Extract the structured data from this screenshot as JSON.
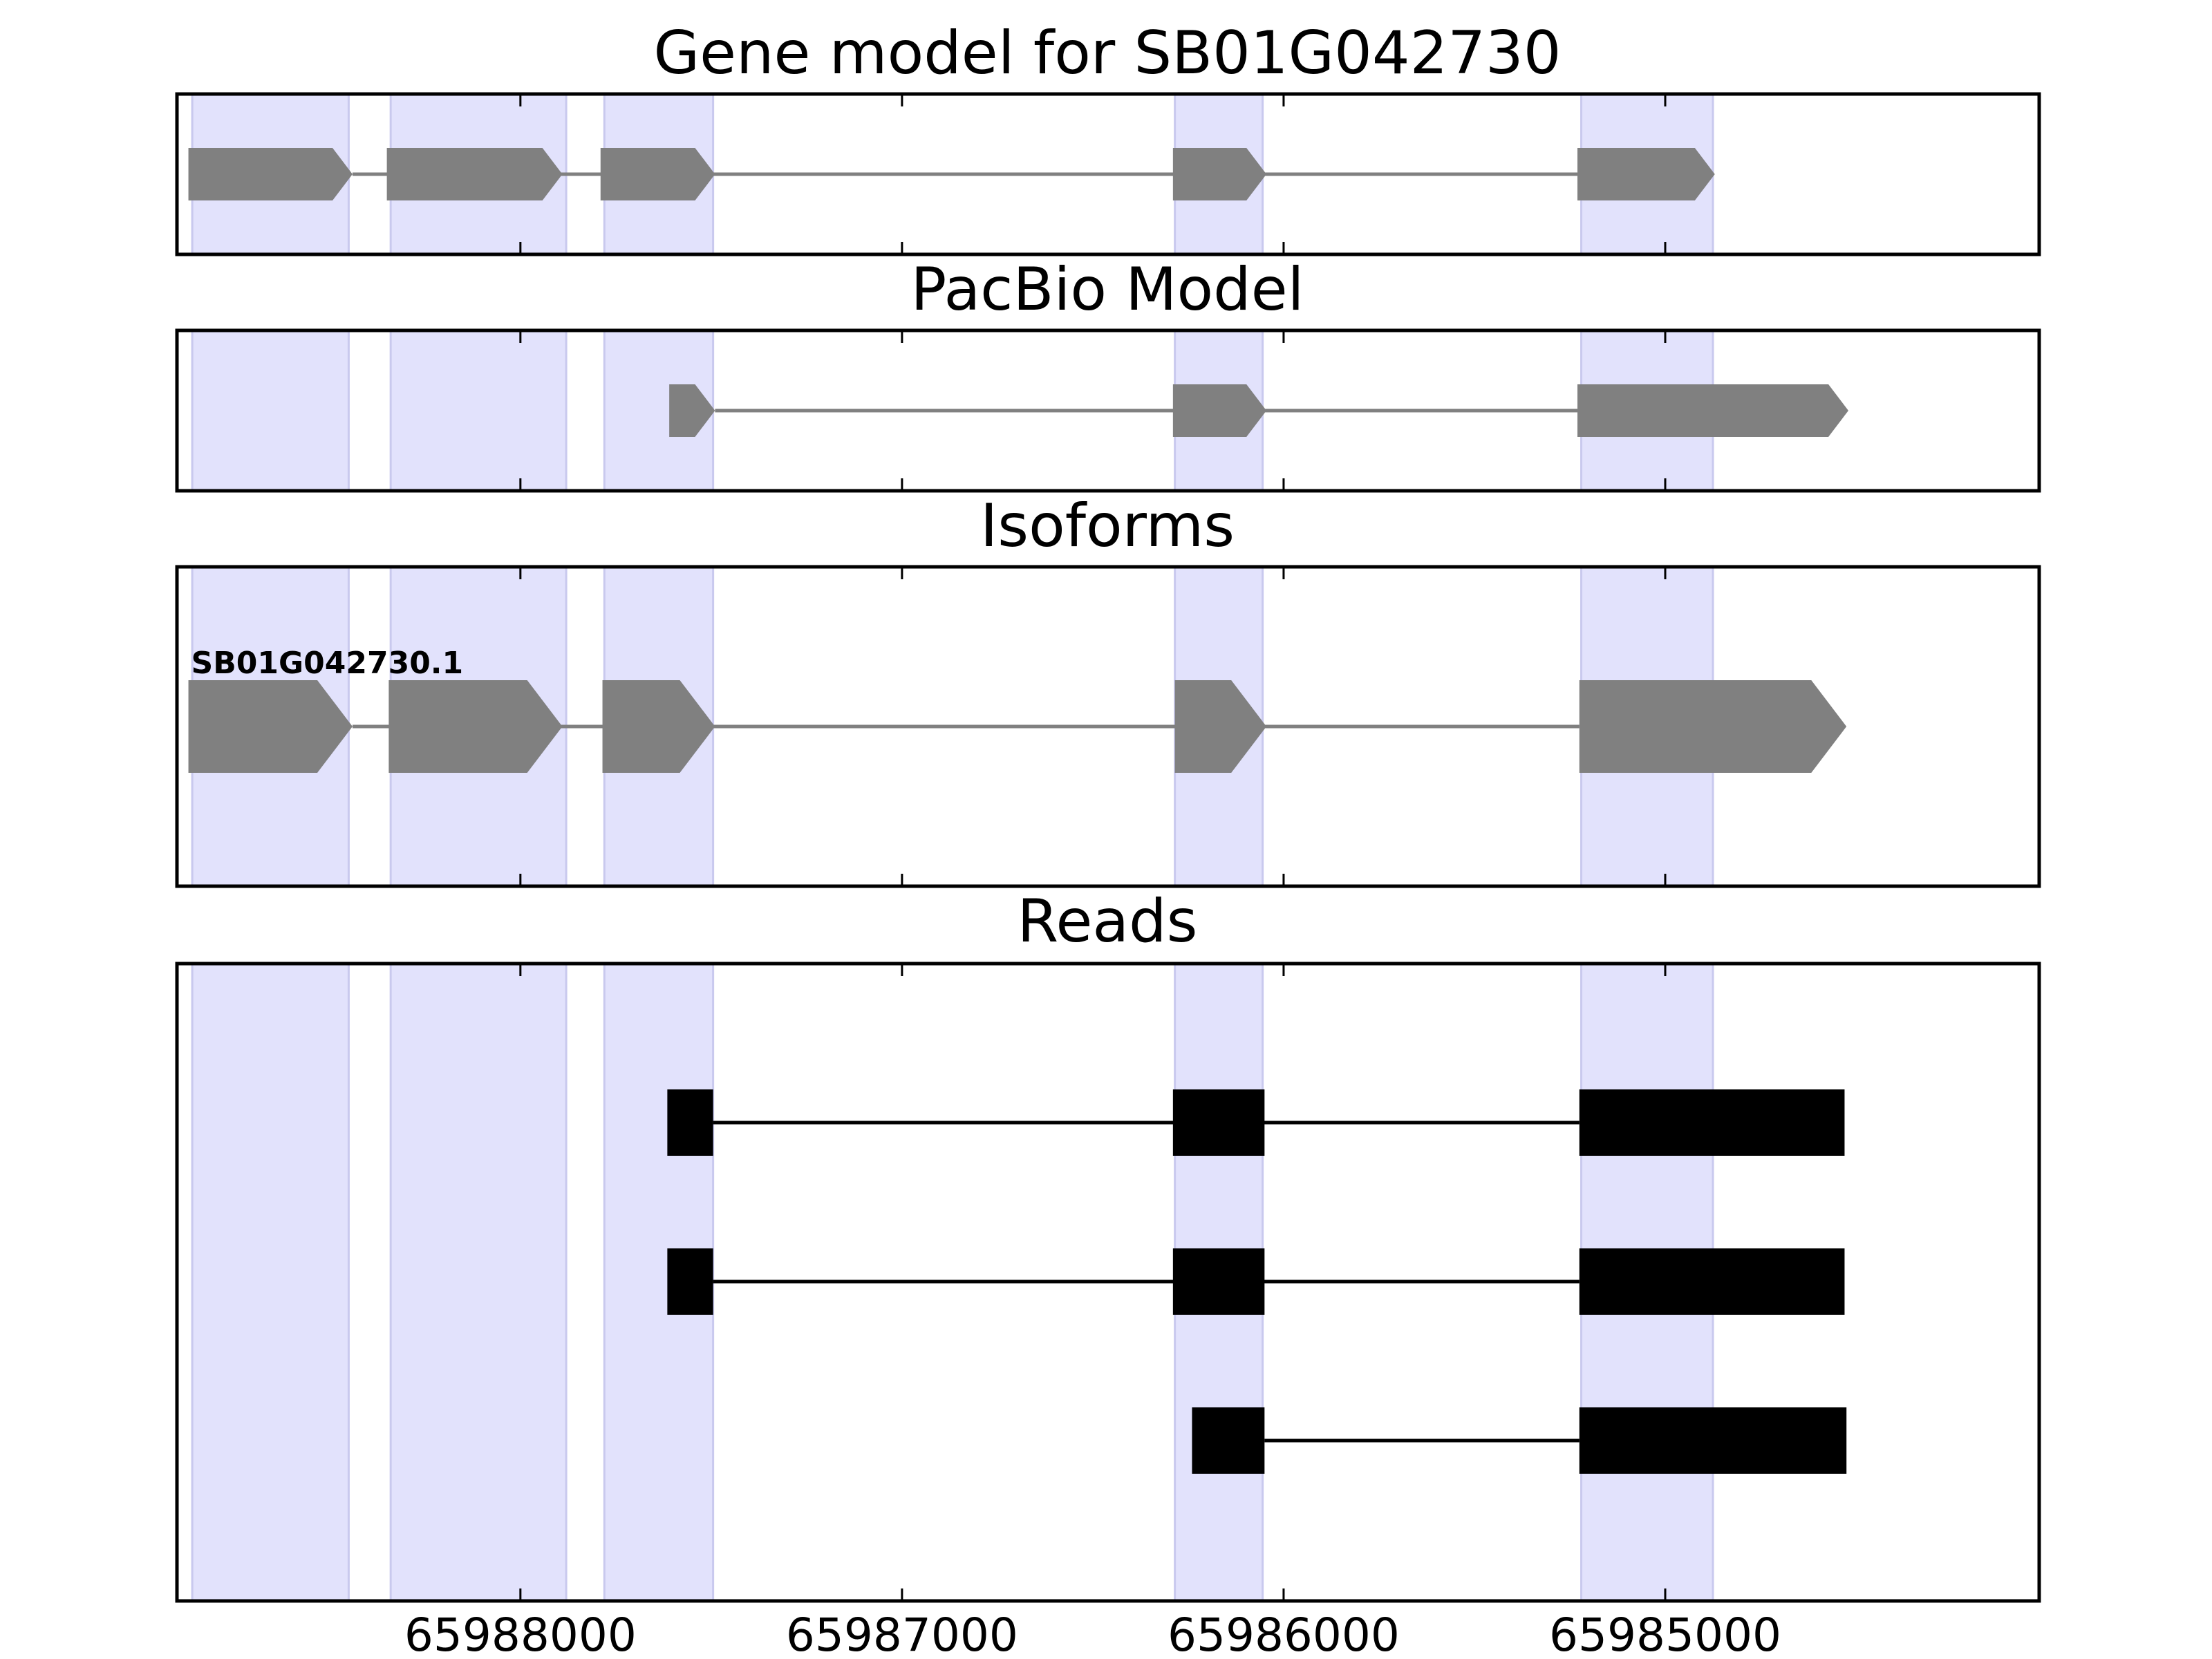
{
  "chart_data": {
    "type": "gene-track",
    "direction": "reverse",
    "xlim": [
      65988900,
      65984020
    ],
    "xticks": [
      65988000,
      65987000,
      65986000,
      65985000
    ],
    "xtick_labels": [
      "65988000",
      "65987000",
      "65986000",
      "65985000"
    ],
    "highlight_color": "#e2e2fc",
    "gene_color": "#808080",
    "read_color": "#000000",
    "highlight_regions": [
      [
        65988860,
        65988450
      ],
      [
        65988340,
        65987880
      ],
      [
        65987780,
        65987495
      ],
      [
        65986285,
        65986055
      ],
      [
        65985220,
        65984875
      ]
    ],
    "panels": [
      {
        "id": "gene-model",
        "title": "Gene model for SB01G042730",
        "kind": "arrows",
        "features": [
          {
            "label": "",
            "exons": [
              [
                65988870,
                65988440
              ],
              [
                65988350,
                65987890
              ],
              [
                65987790,
                65987490
              ],
              [
                65986290,
                65986045
              ],
              [
                65985230,
                65984870
              ]
            ]
          }
        ]
      },
      {
        "id": "pacbio-model",
        "title": "PacBio Model",
        "kind": "arrows",
        "features": [
          {
            "label": "",
            "exons": [
              [
                65987610,
                65987490
              ],
              [
                65986290,
                65986045
              ],
              [
                65985230,
                65984520
              ]
            ]
          }
        ]
      },
      {
        "id": "isoforms",
        "title": "Isoforms",
        "kind": "arrows",
        "features": [
          {
            "label": "SB01G042730.1",
            "exons": [
              [
                65988870,
                65988440
              ],
              [
                65988345,
                65987890
              ],
              [
                65987785,
                65987490
              ],
              [
                65986285,
                65986045
              ],
              [
                65985225,
                65984525
              ]
            ]
          }
        ]
      },
      {
        "id": "reads",
        "title": "Reads",
        "kind": "reads",
        "features": [
          {
            "label": "",
            "exons": [
              [
                65987615,
                65987495
              ],
              [
                65986290,
                65986050
              ],
              [
                65985225,
                65984530
              ]
            ]
          },
          {
            "label": "",
            "exons": [
              [
                65987615,
                65987495
              ],
              [
                65986290,
                65986050
              ],
              [
                65985225,
                65984530
              ]
            ]
          },
          {
            "label": "",
            "exons": [
              [
                65986240,
                65986050
              ],
              [
                65985225,
                65984525
              ]
            ]
          }
        ]
      }
    ]
  }
}
